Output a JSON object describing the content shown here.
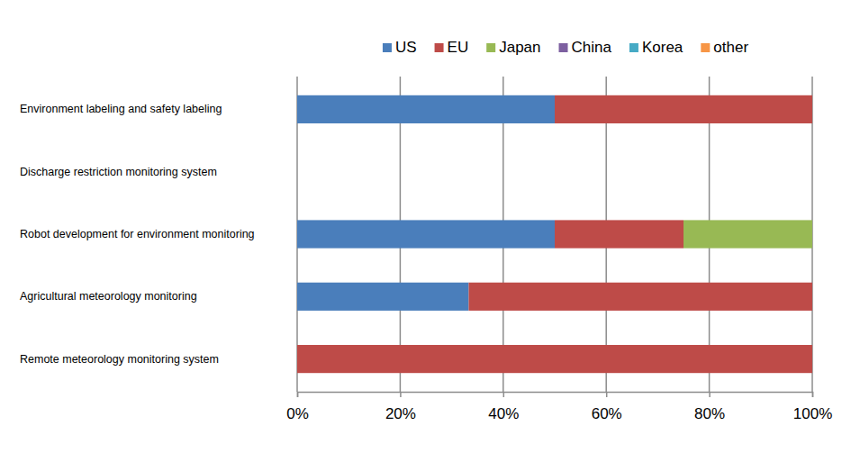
{
  "chart_data": {
    "type": "bar",
    "orientation": "horizontal",
    "stacked": true,
    "grid": true,
    "legend": "top",
    "categories": [
      "Environment labeling and safety labeling",
      "Discharge restriction monitoring system",
      "Robot development  for environment monitoring",
      "Agricultural meteorology monitoring",
      "Remote meteorology monitoring system"
    ],
    "series": [
      {
        "name": "US",
        "color": "#4a7ebb",
        "values": [
          50,
          0,
          50,
          33.3,
          0
        ]
      },
      {
        "name": "EU",
        "color": "#be4b48",
        "values": [
          50,
          0,
          25,
          66.7,
          100
        ]
      },
      {
        "name": "Japan",
        "color": "#98b954",
        "values": [
          0,
          0,
          25,
          0,
          0
        ]
      },
      {
        "name": "China",
        "color": "#7d60a0",
        "values": [
          0,
          0,
          0,
          0,
          0
        ]
      },
      {
        "name": "Korea",
        "color": "#46aac5",
        "values": [
          0,
          0,
          0,
          0,
          0
        ]
      },
      {
        "name": "other",
        "color": "#f79646",
        "values": [
          0,
          0,
          0,
          0,
          0
        ]
      }
    ],
    "xlim": [
      0,
      100
    ],
    "xticks": [
      {
        "value": 0,
        "label": "0%"
      },
      {
        "value": 20,
        "label": "20%"
      },
      {
        "value": 40,
        "label": "40%"
      },
      {
        "value": 60,
        "label": "60%"
      },
      {
        "value": 80,
        "label": "80%"
      },
      {
        "value": 100,
        "label": "100%"
      }
    ]
  }
}
